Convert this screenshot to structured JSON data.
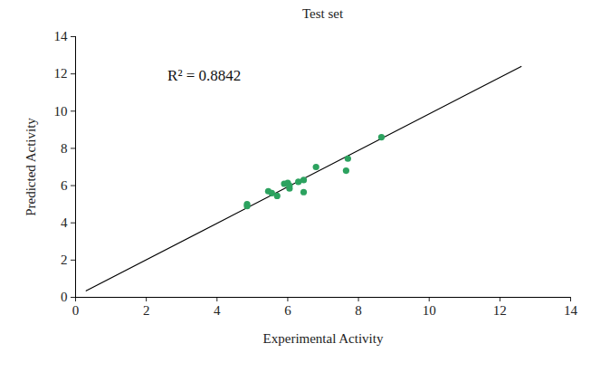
{
  "chart_data": {
    "type": "scatter",
    "title": "Test set",
    "x_label": "Experimental Activity",
    "y_label": "Predicted Activity",
    "annotation": {
      "text": "R² = 0.8842",
      "x": 2.6,
      "y": 11.9
    },
    "x": [
      4.85,
      4.85,
      5.45,
      5.55,
      5.7,
      5.9,
      6.0,
      6.05,
      6.05,
      6.3,
      6.45,
      6.45,
      6.8,
      7.65,
      7.7,
      8.65
    ],
    "values": [
      4.9,
      5.0,
      5.7,
      5.6,
      5.45,
      6.1,
      6.15,
      5.85,
      6.0,
      6.2,
      6.3,
      5.65,
      7.0,
      6.8,
      7.45,
      8.6
    ],
    "color": "#2ca25f",
    "fit_line": {
      "x": [
        0.3,
        12.6
      ],
      "y": [
        0.35,
        12.4
      ],
      "color": "#000000"
    },
    "xlim": [
      0,
      14
    ],
    "ylim": [
      0,
      14
    ],
    "xticks": [
      0,
      2,
      4,
      6,
      8,
      10,
      12,
      14
    ],
    "yticks": [
      0,
      2,
      4,
      6,
      8,
      10,
      12,
      14
    ],
    "grid": false
  }
}
